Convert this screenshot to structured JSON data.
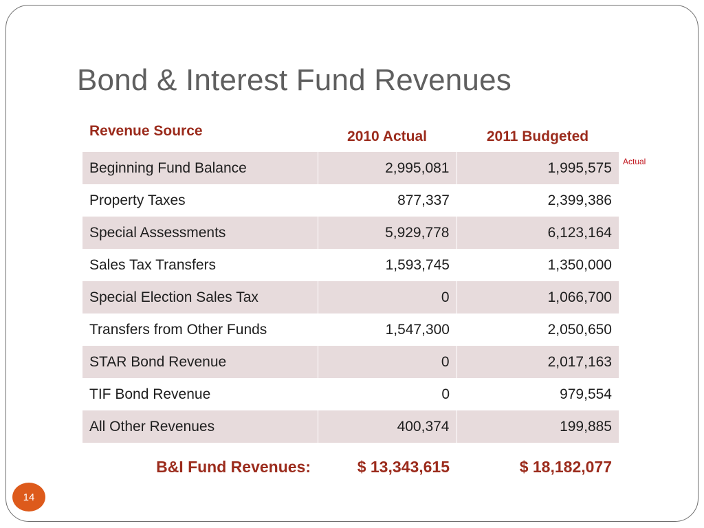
{
  "slide": {
    "title": "Bond & Interest Fund Revenues",
    "page_number": "14",
    "side_note": "Actual"
  },
  "table": {
    "headers": {
      "source": "Revenue Source",
      "actual_2010": "2010  Actual",
      "budget_2011": "2011  Budgeted"
    },
    "rows": [
      {
        "source": "Beginning Fund Balance",
        "actual_2010": "2,995,081",
        "budget_2011": "1,995,575"
      },
      {
        "source": "Property Taxes",
        "actual_2010": "877,337",
        "budget_2011": "2,399,386"
      },
      {
        "source": "Special Assessments",
        "actual_2010": "5,929,778",
        "budget_2011": "6,123,164"
      },
      {
        "source": "Sales Tax Transfers",
        "actual_2010": "1,593,745",
        "budget_2011": "1,350,000"
      },
      {
        "source": "Special Election Sales Tax",
        "actual_2010": "0",
        "budget_2011": "1,066,700"
      },
      {
        "source": "Transfers from Other Funds",
        "actual_2010": "1,547,300",
        "budget_2011": "2,050,650"
      },
      {
        "source": "STAR Bond Revenue",
        "actual_2010": "0",
        "budget_2011": "2,017,163"
      },
      {
        "source": "TIF Bond Revenue",
        "actual_2010": "0",
        "budget_2011": "979,554"
      },
      {
        "source": "All Other Revenues",
        "actual_2010": "400,374",
        "budget_2011": "199,885"
      }
    ],
    "total": {
      "label": "B&I Fund Revenues:",
      "actual_2010": "$ 13,343,615",
      "budget_2011": "$ 18,182,077"
    }
  },
  "colors": {
    "accent_red": "#9b2b1c",
    "row_shade": "#e7dbdc",
    "note_red": "#c0141c",
    "badge_orange": "#dd5a1b",
    "title_gray": "#5f5f5f"
  }
}
